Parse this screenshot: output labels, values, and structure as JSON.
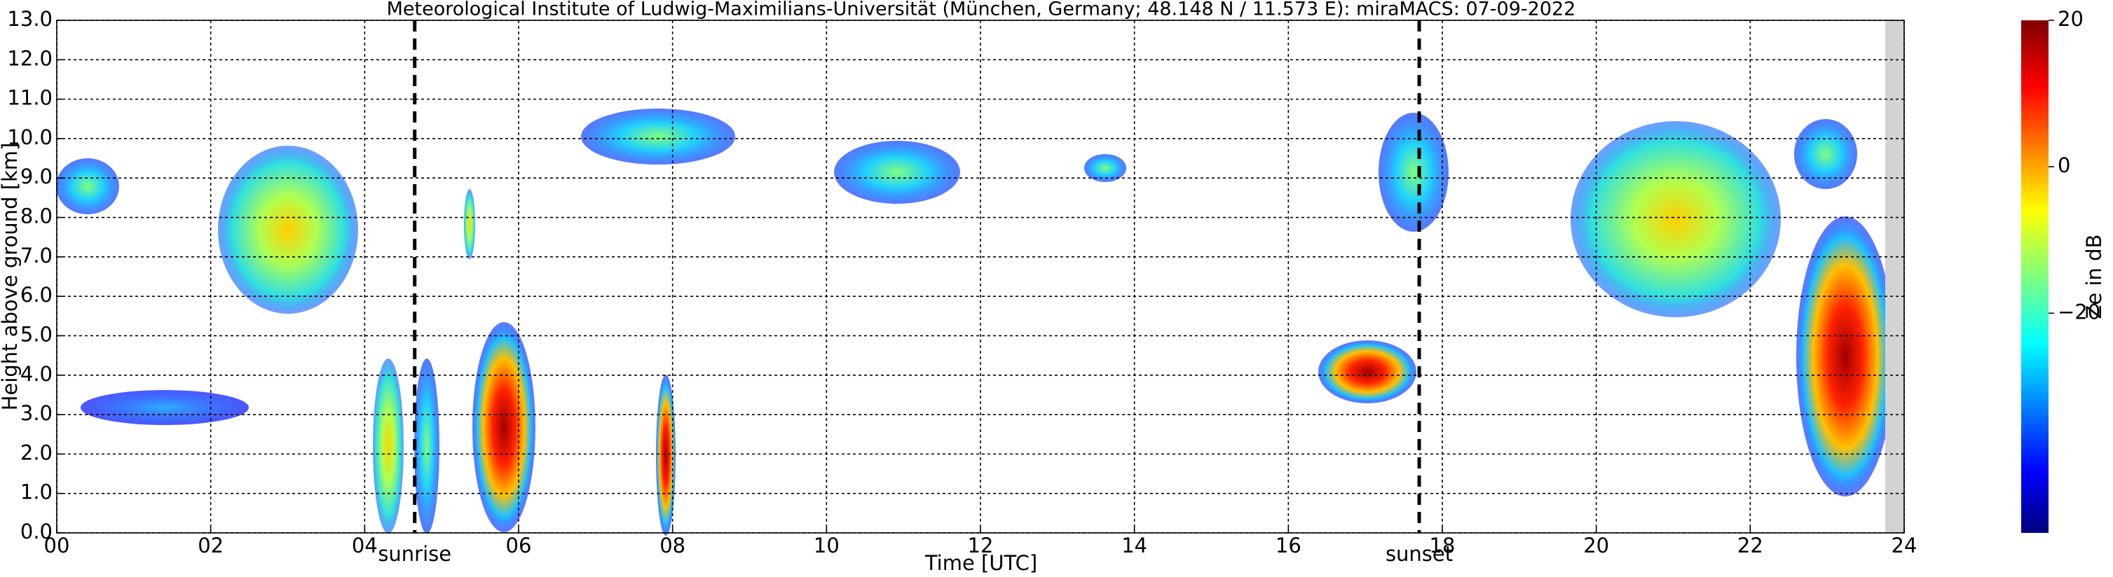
{
  "chart_data": {
    "type": "radar-heatmap",
    "title": "Meteorological Institute of Ludwig-Maximilians-Universität (München, Germany; 48.148 N / 11.573 E):    miraMACS: 07-09-2022",
    "xlabel": "Time [UTC]",
    "ylabel": "Height above ground [km]",
    "xlim": [
      0,
      24
    ],
    "ylim": [
      0,
      13
    ],
    "xticks": [
      {
        "value": 0,
        "label": "00"
      },
      {
        "value": 2,
        "label": "02"
      },
      {
        "value": 4,
        "label": "04"
      },
      {
        "value": 6,
        "label": "06"
      },
      {
        "value": 8,
        "label": "08"
      },
      10,
      12,
      14,
      16,
      18,
      20,
      22,
      24
    ],
    "yticks": [
      {
        "value": 0,
        "label": "0.0"
      },
      {
        "value": 1,
        "label": "1.0"
      },
      {
        "value": 2,
        "label": "2.0"
      },
      {
        "value": 3,
        "label": "3.0"
      },
      {
        "value": 4,
        "label": "4.0"
      },
      {
        "value": 5,
        "label": "5.0"
      },
      {
        "value": 6,
        "label": "6.0"
      },
      {
        "value": 7,
        "label": "7.0"
      },
      {
        "value": 8,
        "label": "8.0"
      },
      {
        "value": 9,
        "label": "9.0"
      },
      {
        "value": 10,
        "label": "10.0"
      },
      {
        "value": 11,
        "label": "11.0"
      },
      {
        "value": 12,
        "label": "12.0"
      },
      {
        "value": 13,
        "label": "13.0"
      }
    ],
    "grid": true,
    "annotations": [
      {
        "label": "sunrise",
        "x": 4.65
      },
      {
        "label": "sunset",
        "x": 17.7
      }
    ],
    "colorbar": {
      "label": "Ze in dB",
      "lim": [
        -50,
        20
      ],
      "ticks": [
        {
          "value": -20,
          "label": "−20"
        },
        0,
        20
      ]
    }
  }
}
